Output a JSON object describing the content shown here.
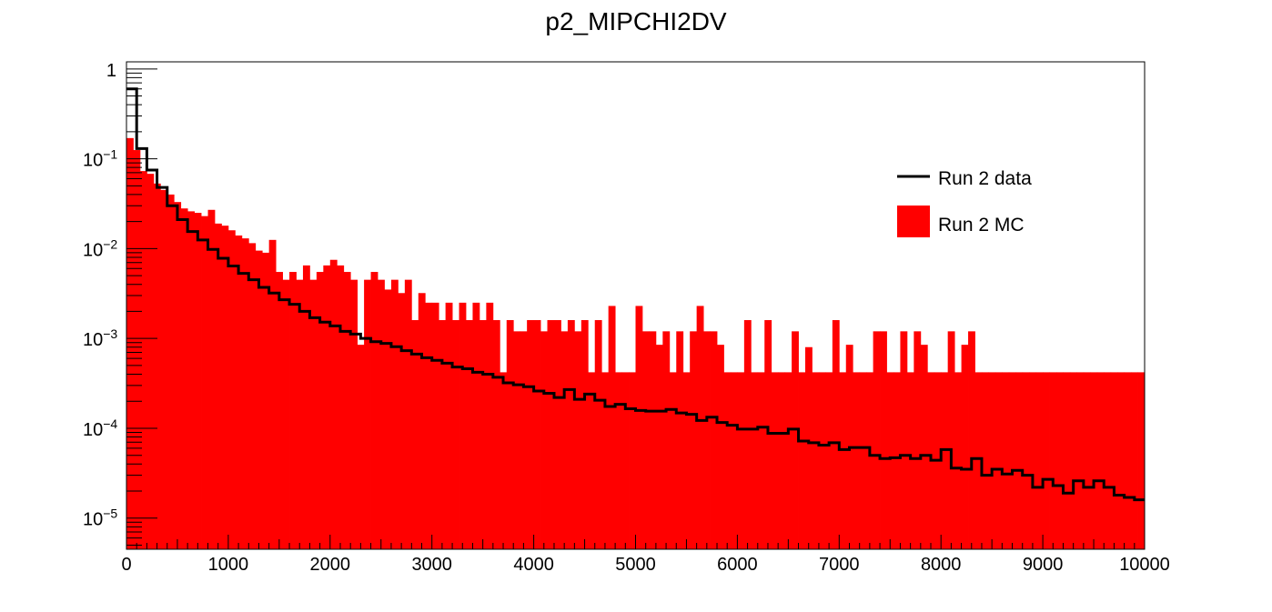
{
  "chart_data": {
    "type": "histogram",
    "title": "p2_MIPCHI2DV",
    "xlabel": "",
    "ylabel": "",
    "xlim": [
      0,
      10000
    ],
    "ylim": [
      4.5e-06,
      1.2
    ],
    "y_scale": "log",
    "bin_width": 100,
    "x_tick_labels": [
      "0",
      "1000",
      "2000",
      "3000",
      "4000",
      "5000",
      "6000",
      "7000",
      "8000",
      "9000",
      "10000"
    ],
    "y_tick_labels": [
      {
        "mantissa": "1",
        "exp": ""
      },
      {
        "mantissa": "10",
        "exp": "−1"
      },
      {
        "mantissa": "10",
        "exp": "−2"
      },
      {
        "mantissa": "10",
        "exp": "−3"
      },
      {
        "mantissa": "10",
        "exp": "−4"
      },
      {
        "mantissa": "10",
        "exp": "−5"
      }
    ],
    "legend_position": "top-right",
    "series": [
      {
        "name": "Run 2 MC",
        "style": "filled",
        "color": "#ff0000",
        "values": [
          0.17,
          0.125,
          0.073,
          0.068,
          0.053,
          0.045,
          0.04,
          0.033,
          0.028,
          0.026,
          0.025,
          0.023,
          0.027,
          0.019,
          0.018,
          0.016,
          0.014,
          0.013,
          0.0115,
          0.0095,
          0.009,
          0.0125,
          0.0055,
          0.0045,
          0.0055,
          0.0045,
          0.0065,
          0.0045,
          0.0055,
          0.0065,
          0.0075,
          0.0065,
          0.0055,
          0.0045,
          0.00085,
          0.0045,
          0.0055,
          0.0045,
          0.0035,
          0.0045,
          0.0032,
          0.0045,
          0.0016,
          0.0032,
          0.0025,
          0.0025,
          0.0016,
          0.0025,
          0.0016,
          0.0025,
          0.0016,
          0.0025,
          0.0016,
          0.0025,
          0.0016,
          0.00042,
          0.0016,
          0.0012,
          0.0012,
          0.0016,
          0.0016,
          0.0012,
          0.0016,
          0.0016,
          0.0012,
          0.0016,
          0.0012,
          0.0016,
          0.00042,
          0.0016,
          0.00042,
          0.0023,
          0.00042,
          0.00042,
          0.00042,
          0.0023,
          0.0012,
          0.0012,
          0.00085,
          0.0012,
          0.00042,
          0.0012,
          0.00042,
          0.0012,
          0.0023,
          0.0012,
          0.0012,
          0.00085,
          0.00042,
          0.00042,
          0.00042,
          0.0016,
          0.00042,
          0.00042,
          0.0016,
          0.00042,
          0.00042,
          0.00042,
          0.0012,
          0.00042,
          0.0008,
          0.00042,
          0.00042,
          0.00042,
          0.0016,
          0.00042,
          0.00085,
          0.00042,
          0.00042,
          0.00042,
          0.0012,
          0.0012,
          0.00042,
          0.00042,
          0.0012,
          0.00042,
          0.0012,
          0.00085,
          0.00042,
          0.00042,
          0.00042,
          0.0012,
          0.00042,
          0.00085,
          0.0012,
          0.00042,
          0.00042,
          0.00042,
          0.00042,
          0.00042,
          0.00042,
          0.00042,
          0.00042,
          0.00042,
          0.00042,
          0.00042,
          0.00042,
          0.00042,
          0.00042,
          0.00042,
          0.00042,
          0.00042,
          0.00042,
          0.00042,
          0.00042,
          0.00042,
          0.00042,
          0.00042,
          0.00042,
          0.00042
        ]
      },
      {
        "name": "Run 2 data",
        "style": "step-line",
        "color": "#000000",
        "values": [
          0.6,
          0.13,
          0.075,
          0.048,
          0.03,
          0.021,
          0.0155,
          0.0125,
          0.0098,
          0.0078,
          0.0064,
          0.0053,
          0.0045,
          0.0037,
          0.0032,
          0.0027,
          0.0024,
          0.002,
          0.0017,
          0.00152,
          0.00138,
          0.0012,
          0.00112,
          0.001,
          0.00092,
          0.00088,
          0.00081,
          0.00073,
          0.00067,
          0.00061,
          0.00057,
          0.00053,
          0.00048,
          0.00046,
          0.00042,
          0.0004,
          0.00037,
          0.00032,
          0.000305,
          0.00029,
          0.00026,
          0.000245,
          0.00022,
          0.00027,
          0.00021,
          0.00024,
          0.000205,
          0.000175,
          0.000185,
          0.000165,
          0.000158,
          0.000155,
          0.000155,
          0.000162,
          0.000148,
          0.000143,
          0.000122,
          0.000133,
          0.000116,
          0.000108,
          9.8e-05,
          9.8e-05,
          0.000103,
          8.8e-05,
          8.8e-05,
          9.8e-05,
          7.2e-05,
          6.9e-05,
          6.5e-05,
          6.9e-05,
          5.8e-05,
          6.1e-05,
          6.1e-05,
          5e-05,
          4.6e-05,
          4.7e-05,
          5e-05,
          4.6e-05,
          5e-05,
          4.4e-05,
          5.8e-05,
          3.6e-05,
          3.5e-05,
          4.6e-05,
          3e-05,
          3.5e-05,
          3.1e-05,
          3.4e-05,
          3e-05,
          2.2e-05,
          2.7e-05,
          2.3e-05,
          1.9e-05,
          2.6e-05,
          2.2e-05,
          2.6e-05,
          2.2e-05,
          1.8e-05,
          1.7e-05,
          1.6e-05
        ],
        "values_note_removed": true
      }
    ]
  }
}
